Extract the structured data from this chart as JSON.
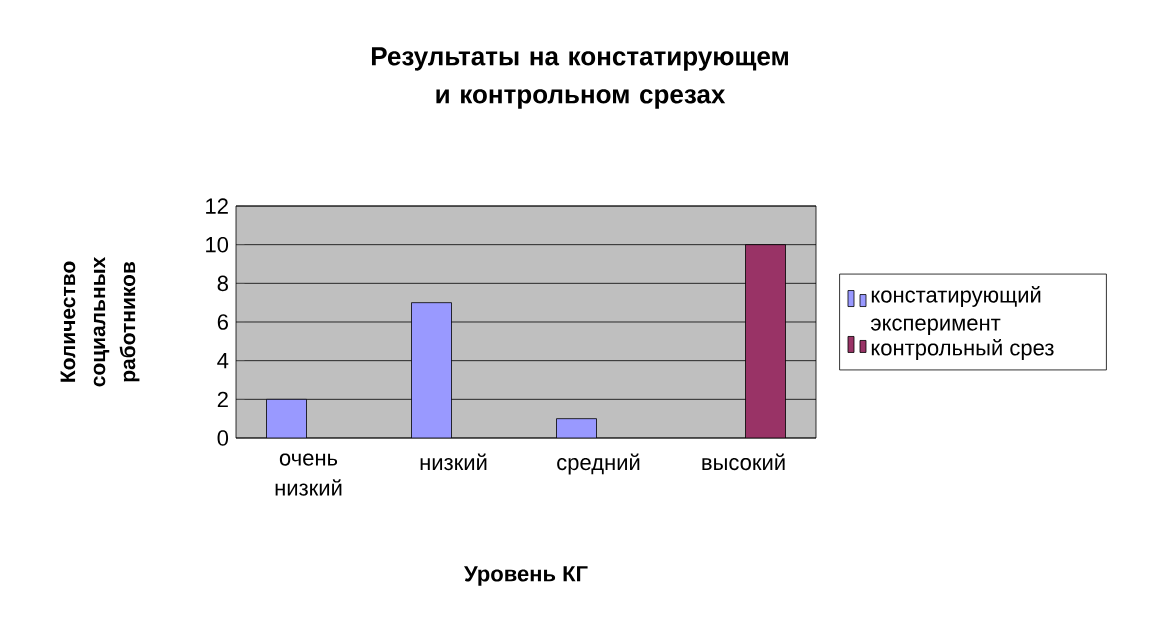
{
  "chart_data": {
    "type": "bar",
    "title": "Результаты на констатирующем и контрольном срезах",
    "xlabel": "Уровень КГ",
    "ylabel": "Количество социальных работников",
    "categories": [
      "очень низкий",
      "низкий",
      "средний",
      "высокий"
    ],
    "series": [
      {
        "name": "констатирующий эксперимент",
        "color": "#9999ff",
        "values": [
          2,
          7,
          1,
          null
        ]
      },
      {
        "name": "контрольный срез",
        "color": "#993366",
        "values": [
          null,
          null,
          null,
          10
        ]
      }
    ],
    "ylim": [
      0,
      12
    ],
    "yticks": [
      0,
      2,
      4,
      6,
      8,
      10,
      12
    ],
    "grid": "y",
    "legend": "right"
  }
}
